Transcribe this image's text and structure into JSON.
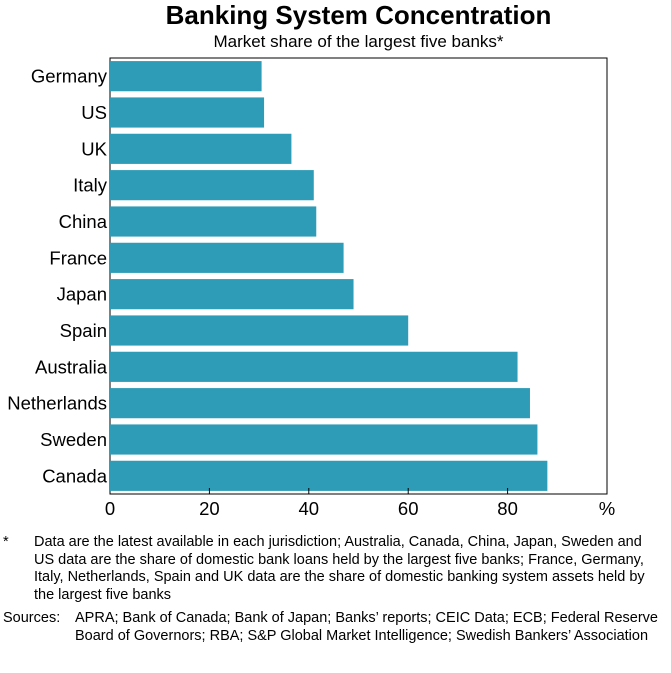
{
  "header": {
    "title": "Banking System Concentration",
    "subtitle": "Market share of the largest five banks*"
  },
  "chart_data": {
    "type": "bar",
    "orientation": "horizontal",
    "title": "Banking System Concentration",
    "subtitle": "Market share of the largest five banks*",
    "categories": [
      "Germany",
      "US",
      "UK",
      "Italy",
      "China",
      "France",
      "Japan",
      "Spain",
      "Australia",
      "Netherlands",
      "Sweden",
      "Canada"
    ],
    "values": [
      30.5,
      31,
      36.5,
      41,
      41.5,
      47,
      49,
      60,
      82,
      84.5,
      86,
      88
    ],
    "xlim": [
      0,
      100
    ],
    "xticks": [
      0,
      20,
      40,
      60,
      80
    ],
    "xunit": "%",
    "grid": false,
    "bar_color": "#2e9bb7"
  },
  "footnote": {
    "marker": "*",
    "text": "Data are the latest available in each jurisdiction; Australia, Canada, China, Japan, Sweden and US data are the share of domestic bank loans held by the largest five banks; France, Germany, Italy, Netherlands, Spain and UK data are the share of domestic banking system assets held by the largest five banks"
  },
  "sources": {
    "label": "Sources:",
    "text": "APRA; Bank of Canada; Bank of Japan; Banks’ reports; CEIC Data; ECB; Federal Reserve Board of Governors; RBA; S&P Global Market Intelligence; Swedish Bankers’ Association"
  }
}
